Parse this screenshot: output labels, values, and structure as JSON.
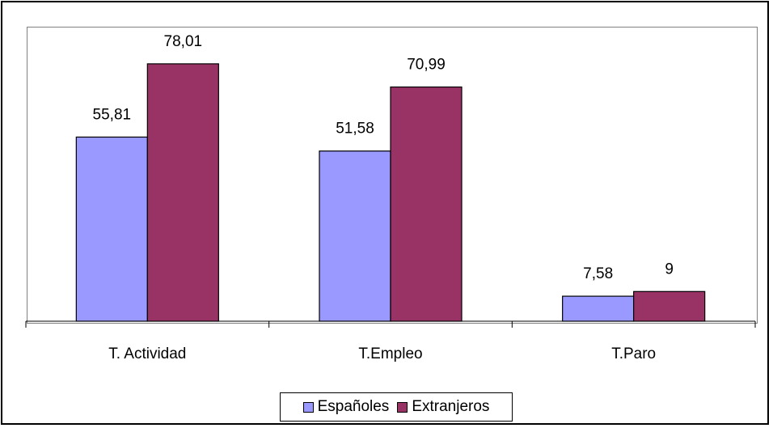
{
  "chart_data": {
    "type": "bar",
    "categories": [
      "T. Actividad",
      "T.Empleo",
      "T.Paro"
    ],
    "series": [
      {
        "name": "Españoles",
        "values": [
          55.81,
          51.58,
          7.58
        ],
        "labels": [
          "55,81",
          "51,58",
          "7,58"
        ],
        "color": "#9999ff"
      },
      {
        "name": "Extranjeros",
        "values": [
          78.01,
          70.99,
          9
        ],
        "labels": [
          "78,01",
          "70,99",
          "9"
        ],
        "color": "#993366"
      }
    ],
    "title": "",
    "xlabel": "",
    "ylabel": "",
    "ylim": [
      0,
      90
    ],
    "grid": false,
    "legend_position": "bottom"
  }
}
